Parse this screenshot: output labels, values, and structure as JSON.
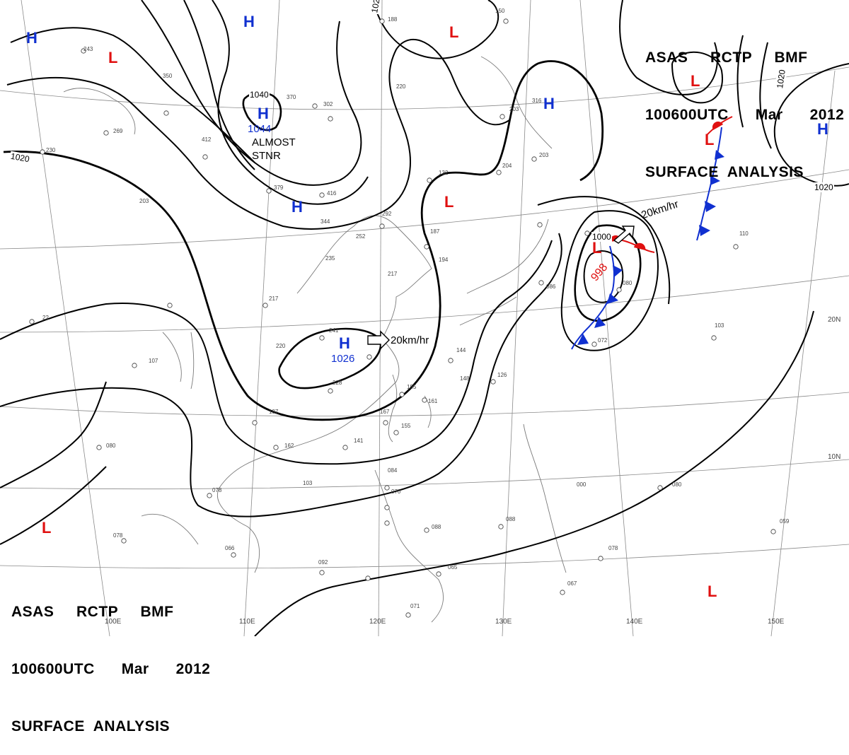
{
  "header": {
    "line1": "ASAS     RCTP     BMF",
    "line2": "100600UTC      Mar      2012",
    "line3": "SURFACE  ANALYSIS"
  },
  "pressure_systems": [
    {
      "type": "H",
      "value": "",
      "name": "high-nw-corner"
    },
    {
      "type": "H",
      "value": "",
      "name": "high-north"
    },
    {
      "type": "H",
      "value": "1044",
      "name": "high-siberia"
    },
    {
      "type": "H",
      "value": "",
      "name": "high-mongolia"
    },
    {
      "type": "H",
      "value": "1026",
      "name": "high-south-china"
    },
    {
      "type": "H",
      "value": "",
      "name": "high-sea-of-okhotsk"
    },
    {
      "type": "H",
      "value": "",
      "name": "high-ne-pacific"
    },
    {
      "type": "L",
      "value": "",
      "name": "low-west"
    },
    {
      "type": "L",
      "value": "",
      "name": "low-north"
    },
    {
      "type": "L",
      "value": "",
      "name": "low-manchuria"
    },
    {
      "type": "L",
      "value": "998",
      "name": "low-japan"
    },
    {
      "type": "L",
      "value": "",
      "name": "low-kamchatka-1"
    },
    {
      "type": "L",
      "value": "",
      "name": "low-kamchatka-2"
    },
    {
      "type": "L",
      "value": "",
      "name": "low-bay-of-bengal"
    },
    {
      "type": "L",
      "value": "",
      "name": "low-pacific-south"
    }
  ],
  "isobar_labels": [
    "1040",
    "1020",
    "1020",
    "1020",
    "1020",
    "1000"
  ],
  "annotations": {
    "stationary": "ALMOST\nSTNR",
    "motion_east": "20km/hr",
    "motion_japan": "20km/hr"
  },
  "latitude_labels": [
    "20N",
    "10N"
  ],
  "longitude_labels": [
    "100E",
    "110E",
    "120E",
    "130E",
    "140E",
    "150E"
  ],
  "colors": {
    "high": "#1030d0",
    "low": "#e01010",
    "isobar": "#000000",
    "grid": "#8a8a8a",
    "coast": "#7a7a7a",
    "cold_front": "#1030d0",
    "warm_front": "#e01010"
  }
}
